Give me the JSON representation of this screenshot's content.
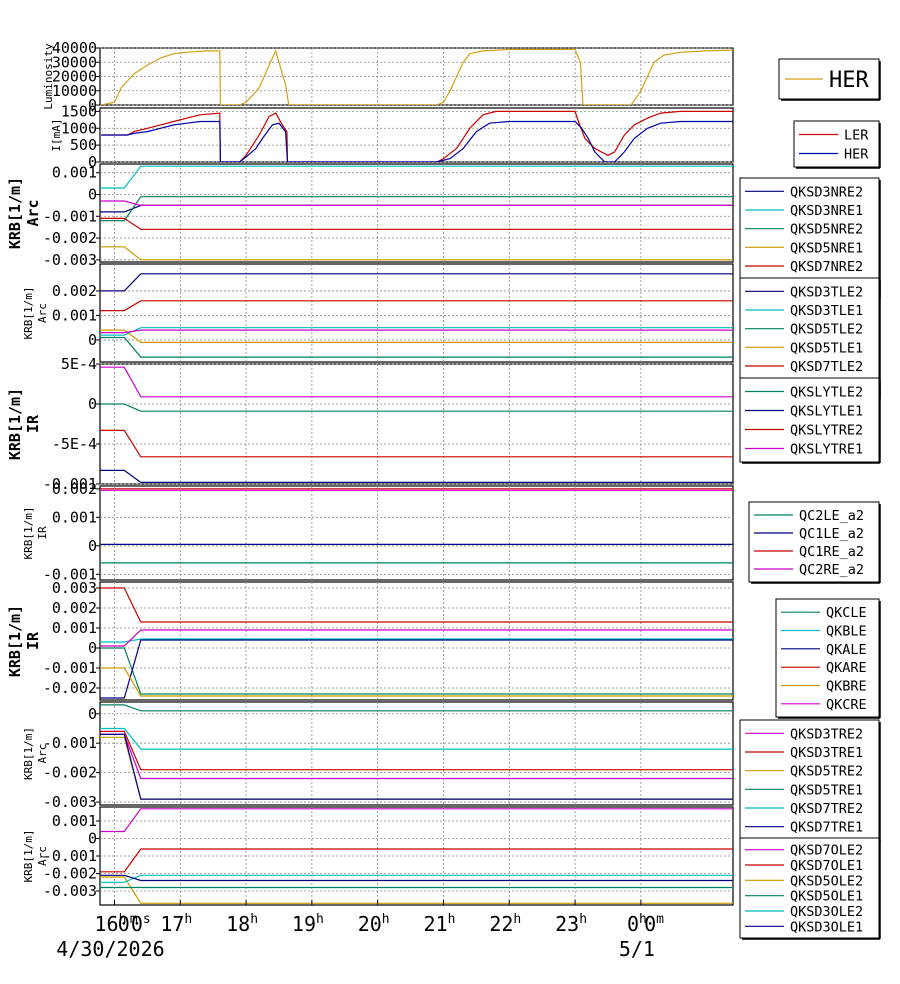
{
  "time_axis": {
    "ticks": [
      {
        "label": "16",
        "sup": "h",
        "x": 16
      },
      {
        "label": "17",
        "sup": "h",
        "x": 17
      },
      {
        "label": "18",
        "sup": "h",
        "x": 18
      },
      {
        "label": "19",
        "sup": "h",
        "x": 19
      },
      {
        "label": "20",
        "sup": "h",
        "x": 20
      },
      {
        "label": "21",
        "sup": "h",
        "x": 21
      },
      {
        "label": "22",
        "sup": "h",
        "x": 22
      },
      {
        "label": "23",
        "sup": "h",
        "x": 23
      },
      {
        "label": "0",
        "sup": "h",
        "x": 24
      }
    ],
    "overlap_labels": [
      {
        "text": "0",
        "sup": "m",
        "x": 16.2
      },
      {
        "text": "0",
        "sup": "s",
        "x": 16.4
      },
      {
        "text": "0",
        "sup": "m",
        "x": 24.2
      }
    ],
    "dates": [
      {
        "text": "4/30/2026",
        "x": 16.0
      },
      {
        "text": "5/1",
        "x": 24.0
      }
    ]
  },
  "chart_data": [
    {
      "type": "line",
      "ylabel": "Luminosity",
      "ylim": [
        0,
        40000
      ],
      "yticks": [
        "40000",
        "30000",
        "20000",
        "10000",
        "0"
      ],
      "ytick_values": [
        40000,
        30000,
        20000,
        10000,
        0
      ],
      "series": [
        {
          "name": "HER",
          "color": "#d4a017",
          "points": [
            [
              15.8,
              0
            ],
            [
              16.0,
              2000
            ],
            [
              16.1,
              12000
            ],
            [
              16.3,
              22000
            ],
            [
              16.5,
              28000
            ],
            [
              16.7,
              33000
            ],
            [
              16.9,
              36000
            ],
            [
              17.1,
              37000
            ],
            [
              17.4,
              38000
            ],
            [
              17.6,
              38000
            ],
            [
              17.61,
              0
            ],
            [
              17.9,
              0
            ],
            [
              18.0,
              2000
            ],
            [
              18.2,
              12000
            ],
            [
              18.35,
              28000
            ],
            [
              18.45,
              38000
            ],
            [
              18.5,
              30000
            ],
            [
              18.6,
              14000
            ],
            [
              18.65,
              0
            ],
            [
              20.9,
              0
            ],
            [
              21.0,
              2000
            ],
            [
              21.1,
              10000
            ],
            [
              21.3,
              30000
            ],
            [
              21.4,
              36000
            ],
            [
              21.6,
              38000
            ],
            [
              22.0,
              39000
            ],
            [
              22.5,
              39000
            ],
            [
              23.0,
              39000
            ],
            [
              23.08,
              30000
            ],
            [
              23.12,
              0
            ],
            [
              23.85,
              0
            ],
            [
              24.0,
              10000
            ],
            [
              24.1,
              20000
            ],
            [
              24.2,
              30000
            ],
            [
              24.35,
              35000
            ],
            [
              24.6,
              37000
            ],
            [
              25.0,
              38000
            ],
            [
              25.4,
              38500
            ]
          ]
        }
      ]
    },
    {
      "type": "line",
      "ylabel": "I[mA]",
      "ylim": [
        0,
        1600
      ],
      "yticks": [
        "1500",
        "1000",
        "500",
        "0"
      ],
      "ytick_values": [
        1500,
        1000,
        500,
        0
      ],
      "series": [
        {
          "name": "LER",
          "color": "#cc0000",
          "points": [
            [
              15.8,
              800
            ],
            [
              16.2,
              800
            ],
            [
              16.3,
              900
            ],
            [
              16.5,
              1000
            ],
            [
              16.7,
              1100
            ],
            [
              16.9,
              1200
            ],
            [
              17.1,
              1300
            ],
            [
              17.3,
              1400
            ],
            [
              17.6,
              1450
            ],
            [
              17.61,
              0
            ],
            [
              17.9,
              0
            ],
            [
              18.0,
              200
            ],
            [
              18.1,
              500
            ],
            [
              18.2,
              800
            ],
            [
              18.35,
              1350
            ],
            [
              18.45,
              1450
            ],
            [
              18.55,
              1100
            ],
            [
              18.62,
              900
            ],
            [
              18.63,
              0
            ],
            [
              20.9,
              0
            ],
            [
              21.0,
              100
            ],
            [
              21.2,
              400
            ],
            [
              21.4,
              1000
            ],
            [
              21.6,
              1400
            ],
            [
              21.8,
              1500
            ],
            [
              23.0,
              1500
            ],
            [
              23.05,
              1200
            ],
            [
              23.15,
              700
            ],
            [
              23.3,
              400
            ],
            [
              23.5,
              200
            ],
            [
              23.6,
              300
            ],
            [
              23.75,
              800
            ],
            [
              23.9,
              1100
            ],
            [
              24.1,
              1300
            ],
            [
              24.3,
              1450
            ],
            [
              24.6,
              1500
            ],
            [
              25.4,
              1500
            ]
          ]
        },
        {
          "name": "HER",
          "color": "#0000aa",
          "points": [
            [
              15.8,
              800
            ],
            [
              16.2,
              800
            ],
            [
              16.3,
              850
            ],
            [
              16.5,
              900
            ],
            [
              16.7,
              1000
            ],
            [
              16.9,
              1100
            ],
            [
              17.1,
              1150
            ],
            [
              17.3,
              1200
            ],
            [
              17.6,
              1200
            ],
            [
              17.61,
              0
            ],
            [
              17.9,
              0
            ],
            [
              18.0,
              150
            ],
            [
              18.15,
              400
            ],
            [
              18.25,
              700
            ],
            [
              18.4,
              1100
            ],
            [
              18.5,
              1150
            ],
            [
              18.6,
              900
            ],
            [
              18.63,
              0
            ],
            [
              20.9,
              0
            ],
            [
              21.1,
              100
            ],
            [
              21.3,
              400
            ],
            [
              21.5,
              900
            ],
            [
              21.7,
              1150
            ],
            [
              22.0,
              1200
            ],
            [
              23.0,
              1200
            ],
            [
              23.1,
              1000
            ],
            [
              23.2,
              700
            ],
            [
              23.3,
              300
            ],
            [
              23.45,
              0
            ],
            [
              23.6,
              0
            ],
            [
              23.75,
              300
            ],
            [
              23.9,
              700
            ],
            [
              24.1,
              1000
            ],
            [
              24.3,
              1150
            ],
            [
              24.6,
              1200
            ],
            [
              25.4,
              1200
            ]
          ]
        }
      ]
    },
    {
      "type": "line",
      "ylabel": "KRB[1/m]",
      "ylabel2": "Arc",
      "ylim": [
        -0.0031,
        0.0014
      ],
      "yticks": [
        "0.001",
        "0",
        "-0.001",
        "-0.002",
        "-0.003"
      ],
      "ytick_values": [
        0.001,
        0,
        -0.001,
        -0.002,
        -0.003
      ],
      "series": [
        {
          "name": "QKSD3NRE2",
          "color": "#000080",
          "y0": -0.0008,
          "y1": -0.0005
        },
        {
          "name": "QKSD3NRE1",
          "color": "#00bfbf",
          "y0": 0.0003,
          "y1": 0.0013
        },
        {
          "name": "QKSD5NRE2",
          "color": "#008060",
          "y0": -0.0012,
          "y1": -0.0001
        },
        {
          "name": "QKSD5NRE1",
          "color": "#cc9900",
          "y0": -0.0024,
          "y1": -0.003
        },
        {
          "name": "QKSD7NRE2",
          "color": "#cc0000",
          "y0": -0.0011,
          "y1": -0.0016
        },
        {
          "name": "QKSD7NRE1",
          "color": "#cc00cc",
          "y0": -0.0003,
          "y1": -0.0005
        }
      ]
    },
    {
      "type": "line",
      "ylabel": "KRB[1/m]",
      "ylabel2": "Arc",
      "ylim": [
        -0.0009,
        0.0031
      ],
      "yticks": [
        "0.002",
        "0.001",
        "0"
      ],
      "ytick_values": [
        0.002,
        0.001,
        0
      ],
      "series": [
        {
          "name": "QKSD3TLE2",
          "color": "#000080",
          "y0": 0.002,
          "y1": 0.0027
        },
        {
          "name": "QKSD3TLE1",
          "color": "#00bfbf",
          "y0": 0.0002,
          "y1": 0.0005
        },
        {
          "name": "QKSD5TLE2",
          "color": "#008060",
          "y0": 0.0001,
          "y1": -0.0007
        },
        {
          "name": "QKSD5TLE1",
          "color": "#cc9900",
          "y0": 0.0004,
          "y1": -0.0001
        },
        {
          "name": "QKSD7TLE2",
          "color": "#cc0000",
          "y0": 0.0012,
          "y1": 0.0016
        },
        {
          "name": "QKSD7TLE1",
          "color": "#cc00cc",
          "y0": 0.0003,
          "y1": 0.0004
        }
      ]
    },
    {
      "type": "line",
      "ylabel": "KRB[1/m]",
      "ylabel2": "IR",
      "ylim": [
        -0.001,
        0.0005
      ],
      "yticks": [
        "5E-4",
        "0",
        "-5E-4",
        "-0.001"
      ],
      "ytick_values": [
        0.0005,
        0,
        -0.0005,
        -0.001
      ],
      "series": [
        {
          "name": "QKSLYTLE2",
          "color": "#008060",
          "y0": 0.0,
          "y1": -9e-05
        },
        {
          "name": "QKSLYTLE1",
          "color": "#000080",
          "y0": -0.00083,
          "y1": -0.00098
        },
        {
          "name": "QKSLYTRE2",
          "color": "#cc0000",
          "y0": -0.00033,
          "y1": -0.00066
        },
        {
          "name": "QKSLYTRE1",
          "color": "#cc00cc",
          "y0": 0.00046,
          "y1": 9e-05
        }
      ]
    },
    {
      "type": "line",
      "ylabel": "KRB[1/m]",
      "ylabel2": "IR",
      "ylim": [
        -0.0012,
        0.0021
      ],
      "yticks": [
        "0.002",
        "0.001",
        "0",
        "-0.001"
      ],
      "ytick_values": [
        0.002,
        0.001,
        0,
        -0.001
      ],
      "series": [
        {
          "name": "QC2LE_a2",
          "color": "#008060",
          "y0": -0.0006,
          "y1": -0.0006
        },
        {
          "name": "QC1LE_a2",
          "color": "#000080",
          "y0": 5e-05,
          "y1": 5e-05
        },
        {
          "name": "QC1RE_a2",
          "color": "#cc0000",
          "y0": 0.002,
          "y1": 0.002
        },
        {
          "name": "QC2RE_a2",
          "color": "#cc00cc",
          "y0": 0.00195,
          "y1": 0.00195
        }
      ]
    },
    {
      "type": "line",
      "ylabel": "KRB[1/m]",
      "ylabel2": "IR",
      "ylim": [
        -0.0026,
        0.0033
      ],
      "yticks": [
        "0.003",
        "0.002",
        "0.001",
        "0",
        "-0.001",
        "-0.002"
      ],
      "ytick_values": [
        0.003,
        0.002,
        0.001,
        0,
        -0.001,
        -0.002
      ],
      "series": [
        {
          "name": "QKCLE",
          "color": "#008060",
          "y0": 0.0,
          "y1": -0.0023
        },
        {
          "name": "QKBLE",
          "color": "#00bfbf",
          "y0": 0.0003,
          "y1": 0.00045
        },
        {
          "name": "QKALE",
          "color": "#000080",
          "y0": -0.0025,
          "y1": 0.0004
        },
        {
          "name": "QKARE",
          "color": "#cc0000",
          "y0": 0.003,
          "y1": 0.0013
        },
        {
          "name": "QKBRE",
          "color": "#cc9900",
          "y0": -0.001,
          "y1": -0.0024
        },
        {
          "name": "QKCRE",
          "color": "#cc00cc",
          "y0": 0.0001,
          "y1": 0.0009
        }
      ]
    },
    {
      "type": "line",
      "ylabel": "KRB[1/m]",
      "ylabel2": "Arc",
      "ylim": [
        -0.0031,
        0.0004
      ],
      "yticks": [
        "0",
        "-0.001",
        "-0.002",
        "-0.003"
      ],
      "ytick_values": [
        0,
        -0.001,
        -0.002,
        -0.003
      ],
      "series": [
        {
          "name": "QKSD3TRE2",
          "color": "#cc00cc",
          "y0": -0.0007,
          "y1": -0.0022
        },
        {
          "name": "QKSD3TRE1",
          "color": "#cc0000",
          "y0": -0.0006,
          "y1": -0.0019
        },
        {
          "name": "QKSD5TRE2",
          "color": "#cc9900",
          "y0": -0.0008,
          "y1": -0.0029
        },
        {
          "name": "QKSD5TRE1",
          "color": "#008060",
          "y0": 0.0003,
          "y1": 0.0001
        },
        {
          "name": "QKSD7TRE2",
          "color": "#00bfbf",
          "y0": -0.0005,
          "y1": -0.0012
        },
        {
          "name": "QKSD7TRE1",
          "color": "#000080",
          "y0": -0.0007,
          "y1": -0.0029
        }
      ]
    },
    {
      "type": "line",
      "ylabel": "KRB[1/m]",
      "ylabel2": "Arc",
      "ylim": [
        -0.0038,
        0.0018
      ],
      "yticks": [
        "0.001",
        "0",
        "-0.001",
        "-0.002",
        "-0.003"
      ],
      "ytick_values": [
        0.001,
        0,
        -0.001,
        -0.002,
        -0.003
      ],
      "series": [
        {
          "name": "QKSD7OLE2",
          "color": "#cc00cc",
          "y0": 0.0004,
          "y1": 0.0017
        },
        {
          "name": "QKSD7OLE1",
          "color": "#cc0000",
          "y0": -0.0019,
          "y1": -0.0006
        },
        {
          "name": "QKSD5OLE2",
          "color": "#cc9900",
          "y0": -0.0022,
          "y1": -0.0037
        },
        {
          "name": "QKSD5OLE1",
          "color": "#008060",
          "y0": -0.0028,
          "y1": -0.0028
        },
        {
          "name": "QKSD3OLE2",
          "color": "#00bfbf",
          "y0": -0.0025,
          "y1": -0.0021
        },
        {
          "name": "QKSD3OLE1",
          "color": "#000080",
          "y0": -0.0021,
          "y1": -0.0024
        }
      ]
    }
  ]
}
